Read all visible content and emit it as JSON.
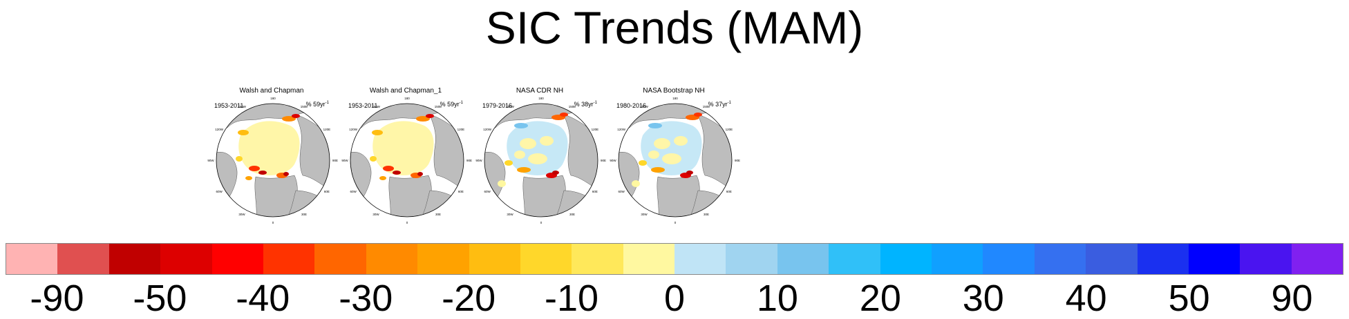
{
  "title": "SIC Trends (MAM)",
  "panels": [
    {
      "title": "Walsh and Chapman",
      "years": "1953-2011",
      "units_text": "% 59yr",
      "units_exp": "-1",
      "style": "warm"
    },
    {
      "title": "Walsh and Chapman_1",
      "years": "1953-2011",
      "units_text": "% 59yr",
      "units_exp": "-1",
      "style": "warm"
    },
    {
      "title": "NASA CDR NH",
      "years": "1979-2016",
      "units_text": "% 38yr",
      "units_exp": "-1",
      "style": "mixed"
    },
    {
      "title": "NASA Bootstrap NH",
      "years": "1980-2016",
      "units_text": "% 37yr",
      "units_exp": "-1",
      "style": "mixed"
    }
  ],
  "longitude_labels": [
    "180",
    "150W",
    "150E",
    "120W",
    "120E",
    "90W",
    "90E",
    "60W",
    "60E",
    "30W",
    "30E",
    "0"
  ],
  "colorbar": {
    "colors": [
      "#ffb3b3",
      "#e05050",
      "#c00000",
      "#dd0000",
      "#ff0000",
      "#ff3300",
      "#ff6600",
      "#ff8a00",
      "#ffa200",
      "#ffbd10",
      "#ffd72a",
      "#ffe85a",
      "#fff8a0",
      "#c0e4f6",
      "#a0d4f0",
      "#78c4ee",
      "#30c0f8",
      "#00b4ff",
      "#10a0ff",
      "#2088ff",
      "#3570f0",
      "#3a5de0",
      "#1a30f0",
      "#0000ff",
      "#4a14f0",
      "#8020f0"
    ],
    "labels": [
      "-90",
      "-50",
      "-40",
      "-30",
      "-20",
      "-10",
      "0",
      "10",
      "20",
      "30",
      "40",
      "50",
      "90"
    ]
  }
}
